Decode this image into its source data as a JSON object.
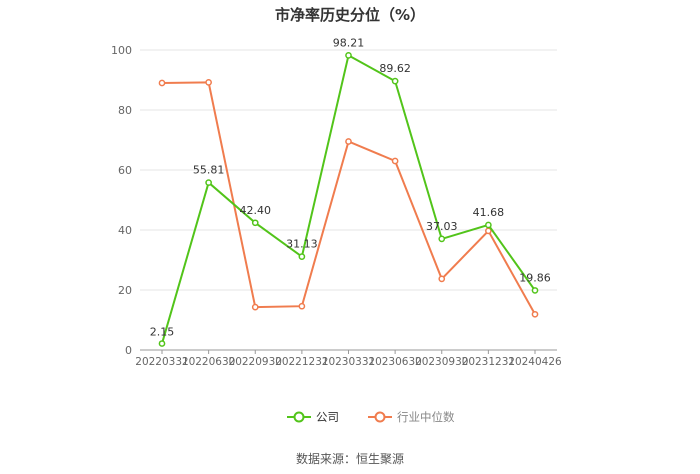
{
  "colors": {
    "company": "#52c41a",
    "industry": "#f07c4e",
    "grid": "#e6e6e6",
    "axis": "#999999"
  },
  "chart_data": {
    "type": "line",
    "title": "市净率历史分位（%）",
    "xlabel": "",
    "ylabel": "",
    "ylim": [
      0,
      100
    ],
    "yticks": [
      0,
      20,
      40,
      60,
      80,
      100
    ],
    "grid": true,
    "legend_position": "bottom",
    "categories": [
      "20220331",
      "20220630",
      "20220930",
      "20221231",
      "20230331",
      "20230630",
      "20230930",
      "20231231",
      "20240426"
    ],
    "series": [
      {
        "name": "公司",
        "values": [
          2.15,
          55.81,
          42.4,
          31.13,
          98.21,
          89.62,
          37.03,
          41.68,
          19.86
        ],
        "labels": [
          "2.15",
          "55.81",
          "42.40",
          "31.13",
          "98.21",
          "89.62",
          "37.03",
          "41.68",
          "19.86"
        ]
      },
      {
        "name": "行业中位数",
        "values": [
          89.0,
          89.2,
          14.3,
          14.6,
          69.5,
          63.0,
          23.7,
          39.7,
          11.9
        ]
      }
    ]
  },
  "footer": {
    "source": "数据来源：恒生聚源"
  }
}
